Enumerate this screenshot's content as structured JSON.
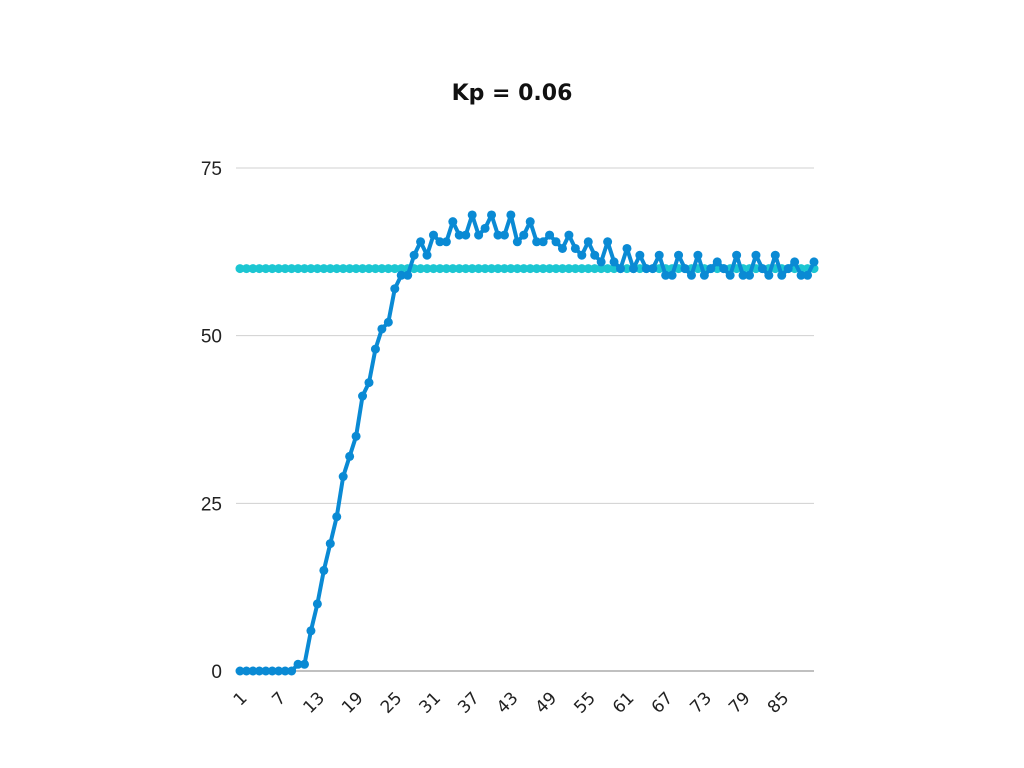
{
  "chart_data": {
    "type": "line",
    "title": "Kp = 0.06",
    "xlabel": "",
    "ylabel": "",
    "ylim": [
      0,
      75
    ],
    "y_ticks": [
      "0",
      "25",
      "50",
      "75"
    ],
    "x_tick_labels": [
      "1",
      "7",
      "13",
      "19",
      "25",
      "31",
      "37",
      "43",
      "49",
      "55",
      "61",
      "67",
      "73",
      "79",
      "85"
    ],
    "grid": true,
    "legend": "none",
    "colors": {
      "process": "#0a8ad4",
      "setpoint": "#1cc6d2"
    },
    "x": [
      1,
      2,
      3,
      4,
      5,
      6,
      7,
      8,
      9,
      10,
      11,
      12,
      13,
      14,
      15,
      16,
      17,
      18,
      19,
      20,
      21,
      22,
      23,
      24,
      25,
      26,
      27,
      28,
      29,
      30,
      31,
      32,
      33,
      34,
      35,
      36,
      37,
      38,
      39,
      40,
      41,
      42,
      43,
      44,
      45,
      46,
      47,
      48,
      49,
      50,
      51,
      52,
      53,
      54,
      55,
      56,
      57,
      58,
      59,
      60,
      61,
      62,
      63,
      64,
      65,
      66,
      67,
      68,
      69,
      70,
      71,
      72,
      73,
      74,
      75,
      76,
      77,
      78,
      79,
      80,
      81,
      82,
      83,
      84,
      85,
      86,
      87,
      88,
      89,
      90
    ],
    "series": [
      {
        "key": "setpoint",
        "values": [
          60,
          60,
          60,
          60,
          60,
          60,
          60,
          60,
          60,
          60,
          60,
          60,
          60,
          60,
          60,
          60,
          60,
          60,
          60,
          60,
          60,
          60,
          60,
          60,
          60,
          60,
          60,
          60,
          60,
          60,
          60,
          60,
          60,
          60,
          60,
          60,
          60,
          60,
          60,
          60,
          60,
          60,
          60,
          60,
          60,
          60,
          60,
          60,
          60,
          60,
          60,
          60,
          60,
          60,
          60,
          60,
          60,
          60,
          60,
          60,
          60,
          60,
          60,
          60,
          60,
          60,
          60,
          60,
          60,
          60,
          60,
          60,
          60,
          60,
          60,
          60,
          60,
          60,
          60,
          60,
          60,
          60,
          60,
          60,
          60,
          60,
          60,
          60,
          60,
          60
        ]
      },
      {
        "key": "process",
        "values": [
          0,
          0,
          0,
          0,
          0,
          0,
          0,
          0,
          0,
          1,
          1,
          6,
          10,
          15,
          19,
          23,
          29,
          32,
          35,
          41,
          43,
          48,
          51,
          52,
          57,
          59,
          59,
          62,
          64,
          62,
          65,
          64,
          64,
          67,
          65,
          65,
          68,
          65,
          66,
          68,
          65,
          65,
          68,
          64,
          65,
          67,
          64,
          64,
          65,
          64,
          63,
          65,
          63,
          62,
          64,
          62,
          61,
          64,
          61,
          60,
          63,
          60,
          62,
          60,
          60,
          62,
          59,
          59,
          62,
          60,
          59,
          62,
          59,
          60,
          61,
          60,
          59,
          62,
          59,
          59,
          62,
          60,
          59,
          62,
          59,
          60,
          61,
          59,
          59,
          61
        ]
      }
    ]
  }
}
